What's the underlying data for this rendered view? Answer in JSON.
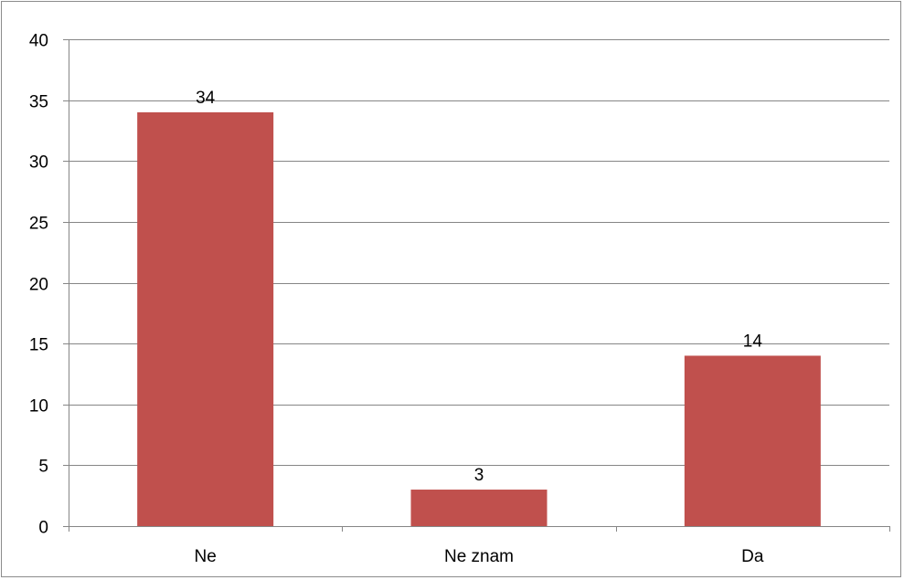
{
  "chart_data": {
    "type": "bar",
    "categories": [
      "Ne",
      "Ne znam",
      "Da"
    ],
    "values": [
      34,
      3,
      14
    ],
    "data_labels": [
      "34",
      "3",
      "14"
    ],
    "title": "",
    "xlabel": "",
    "ylabel": "",
    "ylim": [
      0,
      40
    ],
    "yticks": [
      0,
      5,
      10,
      15,
      20,
      25,
      30,
      35,
      40
    ],
    "grid": true,
    "legend": "none",
    "bar_color": "#c0504d",
    "grid_color": "#868686"
  }
}
